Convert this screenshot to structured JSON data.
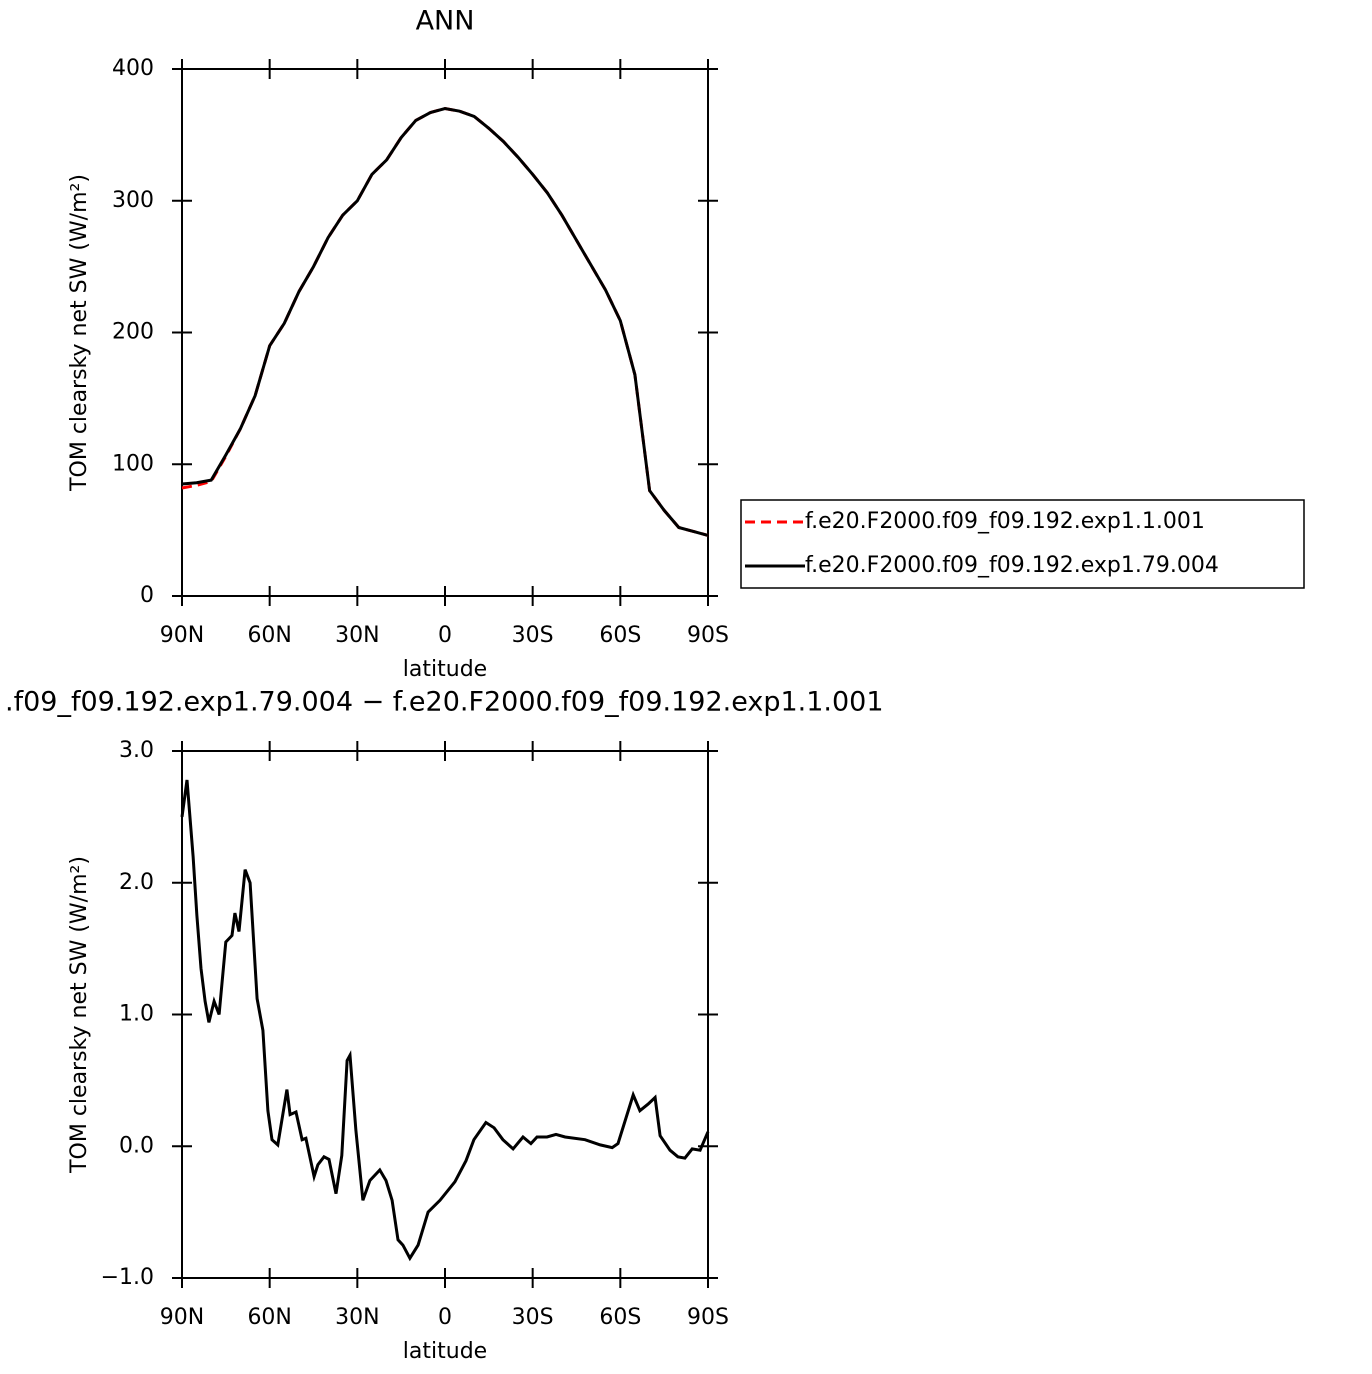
{
  "chart_data": [
    {
      "type": "line",
      "title": "ANN",
      "xlabel": "latitude",
      "ylabel": "TOM clearsky net SW (W/m²)",
      "x": [
        90,
        85,
        80,
        75,
        70,
        65,
        60,
        55,
        50,
        45,
        40,
        35,
        30,
        25,
        20,
        15,
        10,
        5,
        0,
        -5,
        -10,
        -15,
        -20,
        -25,
        -30,
        -35,
        -40,
        -45,
        -50,
        -55,
        -60,
        -65,
        -70,
        -75,
        -80,
        -85,
        -90
      ],
      "series": [
        {
          "name": "f.e20.F2000.f09_f09.192.exp1.1.001",
          "color": "#ff0000",
          "line_style": "dashed",
          "values": [
            82,
            84,
            87,
            106,
            127,
            152,
            190,
            207,
            231,
            250,
            272,
            289,
            300,
            320,
            331,
            348,
            361,
            367,
            370,
            368,
            364,
            355,
            345,
            333,
            320,
            306,
            289,
            270,
            251,
            232,
            209,
            168,
            80,
            65,
            52,
            49,
            46
          ]
        },
        {
          "name": "f.e20.F2000.f09_f09.192.exp1.79.004",
          "color": "#000000",
          "line_style": "solid",
          "values": [
            85,
            86,
            88,
            107,
            127,
            152,
            190,
            207,
            231,
            250,
            272,
            289,
            300,
            320,
            331,
            348,
            361,
            367,
            370,
            368,
            364,
            355,
            345,
            333,
            320,
            306,
            289,
            270,
            251,
            232,
            209,
            168,
            80,
            65,
            52,
            49,
            46
          ]
        }
      ],
      "xlim": [
        90,
        -90
      ],
      "xticks": [
        {
          "value": 90,
          "label": "90N"
        },
        {
          "value": 60,
          "label": "60N"
        },
        {
          "value": 30,
          "label": "30N"
        },
        0,
        {
          "value": -30,
          "label": "30S"
        },
        {
          "value": -60,
          "label": "60S"
        },
        {
          "value": -90,
          "label": "90S"
        }
      ],
      "ylim": [
        0,
        400
      ],
      "yticks": [
        0,
        100,
        200,
        300,
        400
      ],
      "legend": "right"
    },
    {
      "type": "line",
      "title": ".f09_f09.192.exp1.79.004 − f.e20.F2000.f09_f09.192.exp1.1.001",
      "xlabel": "latitude",
      "ylabel": "TOM clearsky net SW (W/m²)",
      "x": [
        90,
        88.3,
        86.2,
        84.9,
        83.5,
        82.1,
        80.8,
        79.0,
        77.3,
        75.0,
        72.9,
        71.9,
        70.5,
        68.4,
        66.7,
        64.3,
        62.3,
        60.6,
        59.2,
        57.2,
        54.1,
        53.0,
        51.0,
        48.9,
        47.6,
        44.8,
        43.5,
        41.4,
        39.7,
        37.3,
        35.3,
        33.5,
        32.5,
        30.5,
        28.1,
        25.7,
        22.3,
        20.2,
        18.1,
        16.1,
        14.4,
        12.0,
        9.2,
        5.8,
        1.7,
        -3.4,
        -7.2,
        -9.9,
        -14.0,
        -16.8,
        -19.8,
        -23.3,
        -26.7,
        -29.4,
        -31.5,
        -34.9,
        -38.0,
        -41.1,
        -47.9,
        -53.1,
        -57.2,
        -59.2,
        -64.4,
        -66.7,
        -69.5,
        -71.9,
        -73.6,
        -77.0,
        -79.7,
        -82.1,
        -84.6,
        -87.3,
        -90
      ],
      "series": [
        {
          "color": "#000000",
          "line_style": "solid",
          "values": [
            2.5,
            2.78,
            2.2,
            1.75,
            1.35,
            1.1,
            0.94,
            1.1,
            1.0,
            1.55,
            1.6,
            1.77,
            1.63,
            2.1,
            2.0,
            1.12,
            0.88,
            0.27,
            0.05,
            0.01,
            0.43,
            0.24,
            0.26,
            0.05,
            0.06,
            -0.23,
            -0.14,
            -0.08,
            -0.1,
            -0.36,
            -0.07,
            0.65,
            0.69,
            0.12,
            -0.41,
            -0.26,
            -0.18,
            -0.26,
            -0.41,
            -0.71,
            -0.75,
            -0.85,
            -0.75,
            -0.5,
            -0.41,
            -0.27,
            -0.11,
            0.05,
            0.18,
            0.14,
            0.05,
            -0.02,
            0.07,
            0.02,
            0.07,
            0.07,
            0.09,
            0.07,
            0.05,
            0.01,
            -0.01,
            0.02,
            0.39,
            0.27,
            0.32,
            0.37,
            0.08,
            -0.03,
            -0.08,
            -0.09,
            -0.02,
            -0.03,
            0.11
          ]
        }
      ],
      "xlim": [
        90,
        -90
      ],
      "xticks": [
        {
          "value": 90,
          "label": "90N"
        },
        {
          "value": 60,
          "label": "60N"
        },
        {
          "value": 30,
          "label": "30N"
        },
        0,
        {
          "value": -30,
          "label": "30S"
        },
        {
          "value": -60,
          "label": "60S"
        },
        {
          "value": -90,
          "label": "90S"
        }
      ],
      "ylim": [
        -1,
        3
      ],
      "yticks": [
        {
          "value": -1,
          "label": "−1.0"
        },
        {
          "value": 0,
          "label": "0.0"
        },
        {
          "value": 1,
          "label": "1.0"
        },
        {
          "value": 2,
          "label": "2.0"
        },
        {
          "value": 3,
          "label": "3.0"
        }
      ]
    }
  ]
}
